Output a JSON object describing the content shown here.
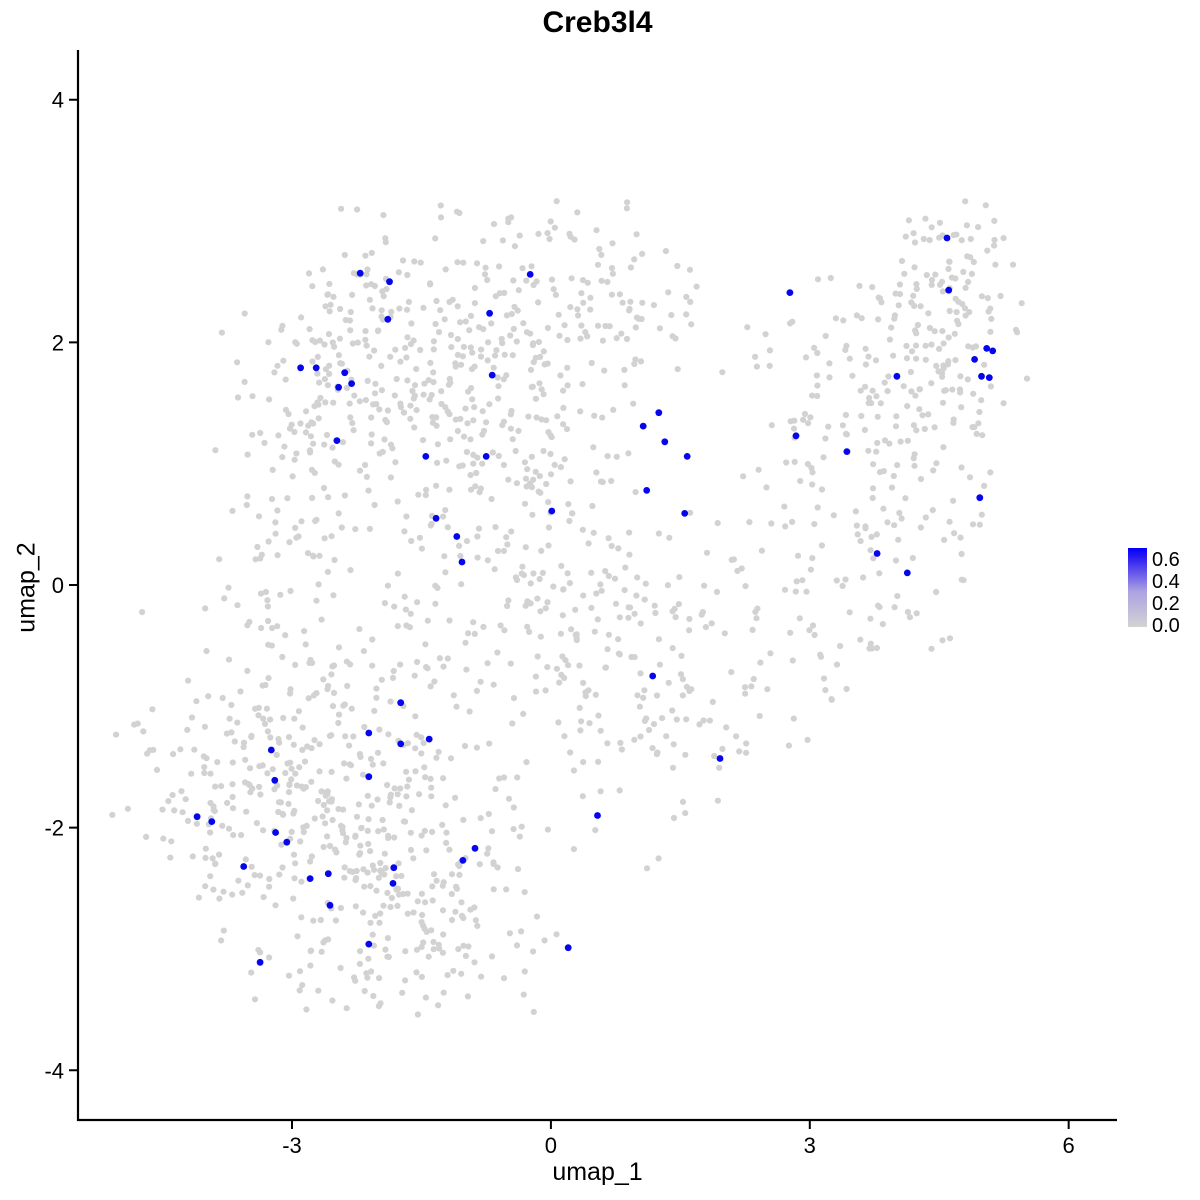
{
  "title": "Creb3l4",
  "axes": {
    "x": {
      "label": "umap_1",
      "ticks": [
        -3,
        0,
        3,
        6
      ],
      "range": [
        -5.48,
        6.56
      ]
    },
    "y": {
      "label": "umap_2",
      "ticks": [
        -4,
        -2,
        0,
        2,
        4
      ],
      "range": [
        -4.41,
        4.41
      ]
    }
  },
  "legend": {
    "tick_labels": [
      "0.6",
      "0.4",
      "0.2",
      "0.0"
    ],
    "tick_values": [
      0.6,
      0.4,
      0.2,
      0.0
    ],
    "bar_value_min": 0.0,
    "bar_value_max": 0.72
  },
  "colors": {
    "point_low": "#D2D2D2",
    "point_high": "#0505EE",
    "gradient_low": "#D3D3D3",
    "gradient_mid": "#ACA2E2",
    "gradient_high_mid": "#2B1BF2",
    "gradient_high": "#0000FE",
    "axis": "#000000",
    "text": "#000000"
  },
  "chart_data": {
    "type": "scatter",
    "title": "Creb3l4",
    "xlabel": "umap_1",
    "ylabel": "umap_2",
    "xlim": [
      -5.48,
      6.56
    ],
    "ylim": [
      -4.41,
      4.41
    ],
    "grid": false,
    "legend_position": "right",
    "colorbar": {
      "min": 0.0,
      "max": 0.6,
      "low_color": "#D3D3D3",
      "high_color": "#0000FF"
    },
    "expression_value_estimate": 0.6,
    "highlighted_points": [
      [
        -2.21,
        2.57
      ],
      [
        -1.87,
        2.5
      ],
      [
        -0.24,
        2.56
      ],
      [
        -1.89,
        2.19
      ],
      [
        -0.71,
        2.24
      ],
      [
        -2.9,
        1.79
      ],
      [
        -2.72,
        1.79
      ],
      [
        -2.39,
        1.75
      ],
      [
        -2.46,
        1.63
      ],
      [
        -2.31,
        1.66
      ],
      [
        -0.68,
        1.73
      ],
      [
        -2.48,
        1.19
      ],
      [
        -1.45,
        1.06
      ],
      [
        -0.75,
        1.06
      ],
      [
        -1.33,
        0.55
      ],
      [
        -1.09,
        0.4
      ],
      [
        -1.03,
        0.19
      ],
      [
        0.01,
        0.61
      ],
      [
        2.77,
        2.41
      ],
      [
        4.59,
        2.86
      ],
      [
        4.61,
        2.43
      ],
      [
        5.05,
        1.95
      ],
      [
        5.12,
        1.93
      ],
      [
        4.91,
        1.86
      ],
      [
        4.99,
        1.72
      ],
      [
        5.08,
        1.71
      ],
      [
        4.01,
        1.72
      ],
      [
        1.25,
        1.42
      ],
      [
        1.07,
        1.31
      ],
      [
        1.32,
        1.18
      ],
      [
        1.58,
        1.06
      ],
      [
        2.84,
        1.23
      ],
      [
        3.43,
        1.1
      ],
      [
        1.11,
        0.78
      ],
      [
        1.55,
        0.59
      ],
      [
        4.97,
        0.72
      ],
      [
        3.78,
        0.26
      ],
      [
        4.13,
        0.1
      ],
      [
        1.18,
        -0.75
      ],
      [
        1.96,
        -1.43
      ],
      [
        0.54,
        -1.9
      ],
      [
        -1.74,
        -0.97
      ],
      [
        -2.11,
        -1.22
      ],
      [
        -1.41,
        -1.27
      ],
      [
        -1.74,
        -1.31
      ],
      [
        -3.24,
        -1.36
      ],
      [
        -2.11,
        -1.58
      ],
      [
        -3.2,
        -1.61
      ],
      [
        -4.1,
        -1.91
      ],
      [
        -3.93,
        -1.95
      ],
      [
        -3.19,
        -2.04
      ],
      [
        -3.06,
        -2.12
      ],
      [
        -0.88,
        -2.17
      ],
      [
        -1.02,
        -2.27
      ],
      [
        -3.56,
        -2.32
      ],
      [
        -1.82,
        -2.33
      ],
      [
        -2.58,
        -2.38
      ],
      [
        -1.83,
        -2.46
      ],
      [
        -2.79,
        -2.42
      ],
      [
        -2.56,
        -2.64
      ],
      [
        -2.11,
        -2.96
      ],
      [
        0.2,
        -2.99
      ],
      [
        -3.37,
        -3.11
      ]
    ],
    "background_cloud_spec": {
      "note": "non-expressing cells (value 0.0), distribution estimated from pixels",
      "seed": 42,
      "bounds": {
        "x": [
          -5.1,
          5.62
        ],
        "y": [
          -3.55,
          3.18
        ]
      },
      "clusters": [
        {
          "name": "upper-blob-core",
          "cx": -1.7,
          "cy": 2.1,
          "sx": 0.85,
          "sy": 0.5,
          "n": 190
        },
        {
          "name": "upper-blob-left",
          "cx": -2.7,
          "cy": 1.15,
          "sx": 0.55,
          "sy": 0.55,
          "n": 100
        },
        {
          "name": "top-bridge",
          "cx": 0.2,
          "cy": 2.35,
          "sx": 0.75,
          "sy": 0.45,
          "n": 115
        },
        {
          "name": "mid-upper-center",
          "cx": -0.6,
          "cy": 1.4,
          "sx": 0.8,
          "sy": 0.5,
          "n": 100
        },
        {
          "name": "right-arm-mid",
          "cx": 3.3,
          "cy": 1.6,
          "sx": 0.65,
          "sy": 0.6,
          "n": 100
        },
        {
          "name": "right-arm-upper",
          "cx": 4.6,
          "cy": 2.1,
          "sx": 0.45,
          "sy": 0.55,
          "n": 115
        },
        {
          "name": "right-arm-tip",
          "cx": 4.65,
          "cy": 2.85,
          "sx": 0.3,
          "sy": 0.2,
          "n": 22
        },
        {
          "name": "right-mid",
          "cx": 4.2,
          "cy": 0.7,
          "sx": 0.5,
          "sy": 0.65,
          "n": 65
        },
        {
          "name": "right-lower-bridge",
          "cx": 3.3,
          "cy": -0.2,
          "sx": 0.6,
          "sy": 0.55,
          "n": 55
        },
        {
          "name": "center-band",
          "cx": -0.4,
          "cy": 0.4,
          "sx": 1.0,
          "sy": 0.65,
          "n": 135
        },
        {
          "name": "center-low",
          "cx": 0.4,
          "cy": -0.5,
          "sx": 0.9,
          "sy": 0.6,
          "n": 110
        },
        {
          "name": "mid-lower-right",
          "cx": 1.5,
          "cy": -1.1,
          "sx": 0.7,
          "sy": 0.5,
          "n": 70
        },
        {
          "name": "lower-left-core",
          "cx": -2.7,
          "cy": -1.9,
          "sx": 0.8,
          "sy": 0.65,
          "n": 210
        },
        {
          "name": "lower-left-west",
          "cx": -3.8,
          "cy": -1.7,
          "sx": 0.45,
          "sy": 0.55,
          "n": 75
        },
        {
          "name": "lower-mid",
          "cx": -1.4,
          "cy": -2.4,
          "sx": 0.75,
          "sy": 0.55,
          "n": 130
        },
        {
          "name": "bottom-tail",
          "cx": -1.9,
          "cy": -3.0,
          "sx": 0.75,
          "sy": 0.28,
          "n": 55
        },
        {
          "name": "left-connector",
          "cx": -3.2,
          "cy": 0.0,
          "sx": 0.45,
          "sy": 0.7,
          "n": 50
        },
        {
          "name": "left-band",
          "cx": -1.9,
          "cy": -0.9,
          "sx": 0.7,
          "sy": 0.5,
          "n": 75
        },
        {
          "name": "outlier-clump",
          "cx": -4.65,
          "cy": -1.25,
          "sx": 0.1,
          "sy": 0.12,
          "n": 5
        }
      ],
      "empty_zones": [
        {
          "x": [
            -6.0,
            -3.35
          ],
          "y": [
            2.25,
            5.0
          ]
        },
        {
          "x": [
            -6.0,
            -4.35
          ],
          "y": [
            -0.2,
            5.0
          ]
        },
        {
          "x": [
            1.3,
            7.0
          ],
          "y": [
            -5.0,
            -2.45
          ]
        },
        {
          "x": [
            2.0,
            7.0
          ],
          "y": [
            -5.0,
            -1.62
          ]
        },
        {
          "x": [
            3.95,
            7.0
          ],
          "y": [
            -5.0,
            -0.55
          ]
        },
        {
          "x": [
            5.0,
            7.0
          ],
          "y": [
            -5.0,
            -0.15
          ]
        },
        {
          "x": [
            -6.0,
            -4.0
          ],
          "y": [
            -5.0,
            -2.6
          ]
        }
      ]
    }
  }
}
